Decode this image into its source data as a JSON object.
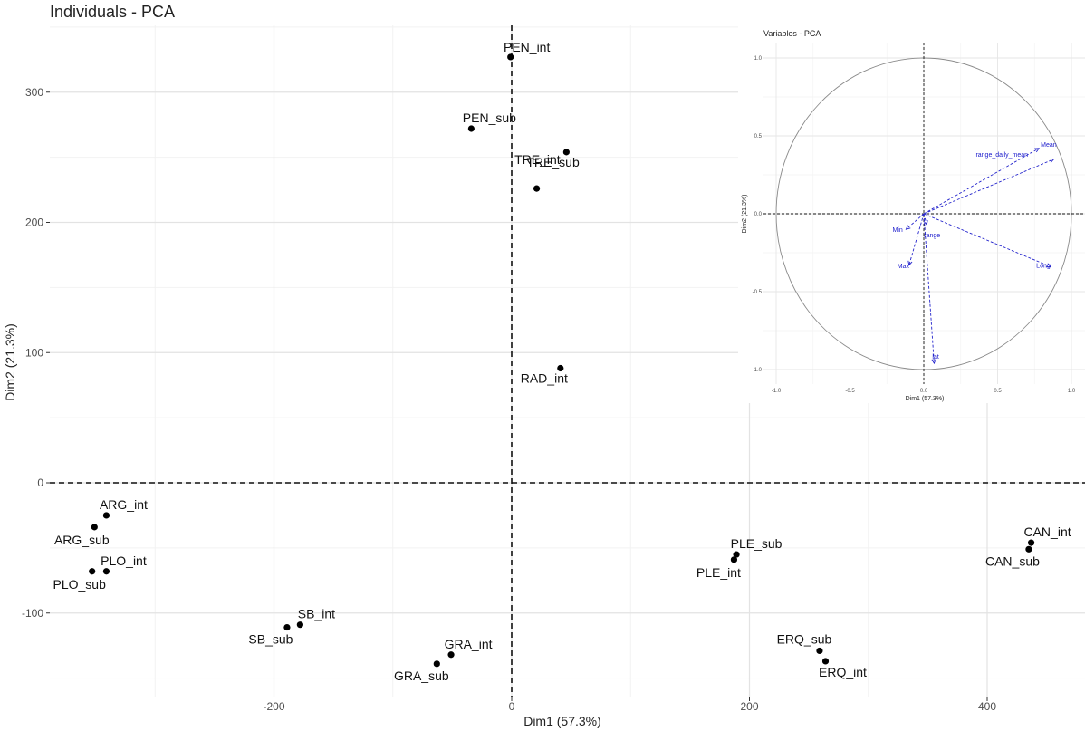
{
  "chart_data": [
    {
      "type": "scatter",
      "title": "Individuals - PCA",
      "xlabel": "Dim1 (57.3%)",
      "ylabel": "Dim2 (21.3%)",
      "xlim": [
        -390,
        480
      ],
      "ylim": [
        -190,
        355
      ],
      "x_ticks": [
        -200,
        0,
        200,
        400
      ],
      "y_ticks": [
        -100,
        0,
        100,
        200,
        300
      ],
      "grid": true,
      "points": [
        {
          "label": "PEN_int",
          "x": -1,
          "y": 327
        },
        {
          "label": "PEN_sub",
          "x": -34,
          "y": 272
        },
        {
          "label": "TRE_int",
          "x": 46,
          "y": 254
        },
        {
          "label": "TRE_sub",
          "x": 21,
          "y": 226
        },
        {
          "label": "RAD_int",
          "x": 41,
          "y": 88
        },
        {
          "label": "ARG_int",
          "x": -341,
          "y": -25
        },
        {
          "label": "ARG_sub",
          "x": -351,
          "y": -34
        },
        {
          "label": "PLO_int",
          "x": -341,
          "y": -68
        },
        {
          "label": "PLO_sub",
          "x": -353,
          "y": -68
        },
        {
          "label": "SB_int",
          "x": -178,
          "y": -109
        },
        {
          "label": "SB_sub",
          "x": -189,
          "y": -111
        },
        {
          "label": "GRA_int",
          "x": -51,
          "y": -132
        },
        {
          "label": "GRA_sub",
          "x": -63,
          "y": -139
        },
        {
          "label": "PLE_sub",
          "x": 189,
          "y": -55
        },
        {
          "label": "PLE_int",
          "x": 187,
          "y": -59
        },
        {
          "label": "CAN_int",
          "x": 437,
          "y": -46
        },
        {
          "label": "CAN_sub",
          "x": 435,
          "y": -51
        },
        {
          "label": "ERQ_sub",
          "x": 259,
          "y": -129
        },
        {
          "label": "ERQ_int",
          "x": 264,
          "y": -137
        }
      ]
    },
    {
      "type": "line",
      "title": "Variables - PCA",
      "xlabel": "Dim1 (57.3%)",
      "ylabel": "Dim2 (21.3%)",
      "xlim": [
        -1.1,
        1.1
      ],
      "ylim": [
        -1.05,
        1.1
      ],
      "x_ticks": [
        "-1.0",
        "-0.5",
        "0.0",
        "0.5",
        "1.0"
      ],
      "y_ticks": [
        "-1.0",
        "-0.5",
        "0.0",
        "0.5",
        "1.0"
      ],
      "grid": true,
      "unit_circle": true,
      "vectors": [
        {
          "label": "Mean",
          "x": 0.78,
          "y": 0.42
        },
        {
          "label": "range_daily_mean",
          "x": 0.88,
          "y": 0.35
        },
        {
          "label": "Long",
          "x": 0.86,
          "y": -0.34
        },
        {
          "label": "lat",
          "x": 0.07,
          "y": -0.96
        },
        {
          "label": "Min",
          "x": -0.12,
          "y": -0.1
        },
        {
          "label": "Max",
          "x": -0.1,
          "y": -0.33
        },
        {
          "label": "range",
          "x": 0.02,
          "y": -0.07
        }
      ]
    }
  ]
}
